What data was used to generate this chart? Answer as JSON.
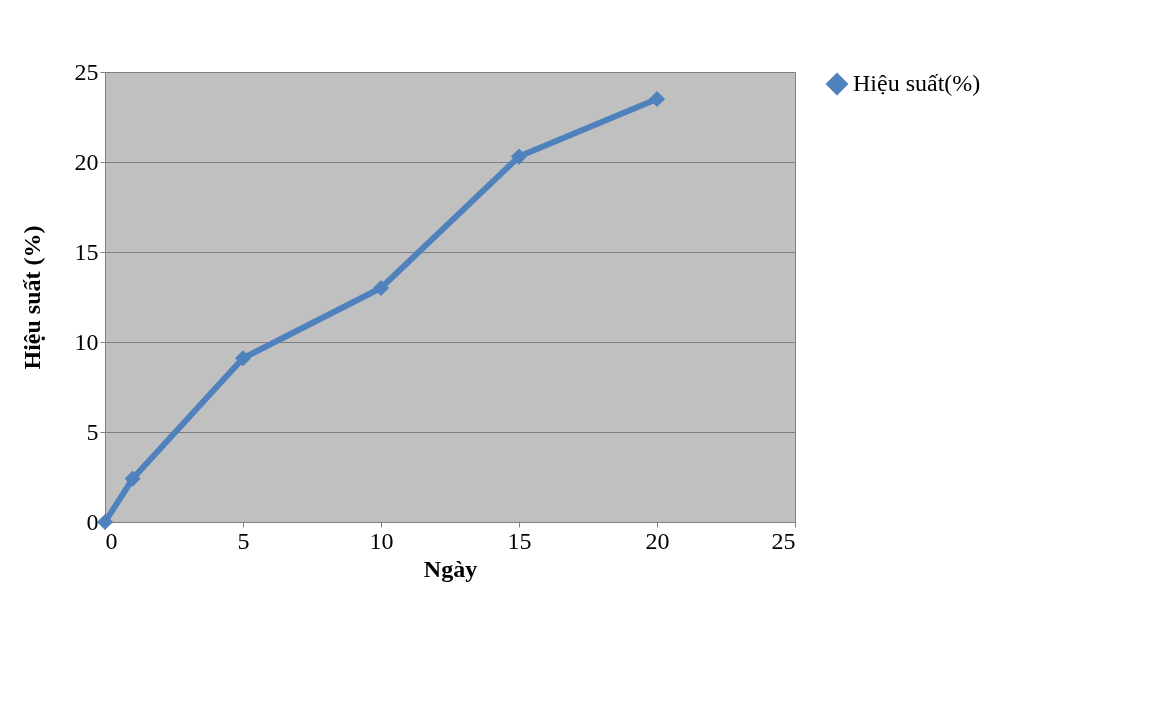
{
  "chart_data": {
    "type": "line",
    "xlabel": "Ngày",
    "ylabel": "Hiệu suất (%)",
    "x": [
      0,
      1,
      5,
      10,
      15,
      20
    ],
    "series": [
      {
        "name": "Hiệu suất(%)",
        "color": "#4f81bd",
        "values": [
          0,
          2.4,
          9.1,
          13.0,
          20.3,
          23.5
        ]
      }
    ],
    "xlim": [
      0,
      25
    ],
    "xticks": [
      0,
      5,
      10,
      15,
      20,
      25
    ],
    "ylim": [
      0,
      25
    ],
    "yticks": [
      0,
      5,
      10,
      15,
      20,
      25
    ],
    "grid": "y",
    "legend": "right",
    "marker": "diamond",
    "line_style": "solid"
  }
}
